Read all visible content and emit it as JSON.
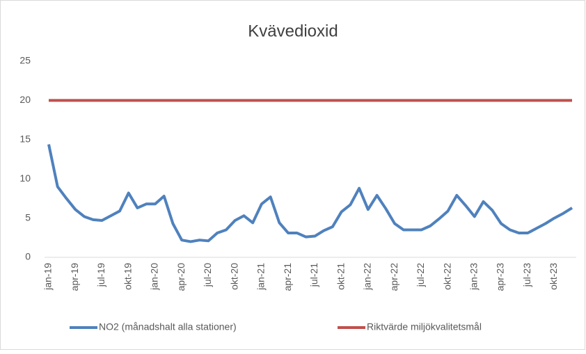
{
  "chart_data": {
    "type": "line",
    "title": "Kvävedioxid",
    "categories": [
      "jan-19",
      null,
      null,
      "apr-19",
      null,
      null,
      "jul-19",
      null,
      null,
      "okt-19",
      null,
      null,
      "jan-20",
      null,
      null,
      "apr-20",
      null,
      null,
      "jul-20",
      null,
      null,
      "okt-20",
      null,
      null,
      "jan-21",
      null,
      null,
      "apr-21",
      null,
      null,
      "jul-21",
      null,
      null,
      "okt-21",
      null,
      null,
      "jan-22",
      null,
      null,
      "apr-22",
      null,
      null,
      "jul-22",
      null,
      null,
      "okt-22",
      null,
      null,
      "jan-23",
      null,
      null,
      "apr-23",
      null,
      null,
      "jul-23",
      null,
      null,
      "okt-23",
      null,
      null
    ],
    "series": [
      {
        "name": "NO2 (månadshalt alla stationer)",
        "color": "#4f81bd",
        "values": [
          14.4,
          9.0,
          7.5,
          6.1,
          5.2,
          4.8,
          4.7,
          5.3,
          5.9,
          8.2,
          6.3,
          6.8,
          6.8,
          7.8,
          4.3,
          2.2,
          2.0,
          2.2,
          2.1,
          3.1,
          3.5,
          4.7,
          5.3,
          4.4,
          6.8,
          7.7,
          4.4,
          3.1,
          3.1,
          2.6,
          2.7,
          3.4,
          3.9,
          5.8,
          6.7,
          8.8,
          6.1,
          7.9,
          6.2,
          4.3,
          3.5,
          3.5,
          3.5,
          4.0,
          4.9,
          5.9,
          7.9,
          6.6,
          5.2,
          7.1,
          6.0,
          4.3,
          3.5,
          3.1,
          3.1,
          3.7,
          4.3,
          5.0,
          5.6,
          6.3
        ]
      },
      {
        "name": "Riktvärde miljökvalitetsmål",
        "color": "#c0504d",
        "values": [
          20,
          20,
          20,
          20,
          20,
          20,
          20,
          20,
          20,
          20,
          20,
          20,
          20,
          20,
          20,
          20,
          20,
          20,
          20,
          20,
          20,
          20,
          20,
          20,
          20,
          20,
          20,
          20,
          20,
          20,
          20,
          20,
          20,
          20,
          20,
          20,
          20,
          20,
          20,
          20,
          20,
          20,
          20,
          20,
          20,
          20,
          20,
          20,
          20,
          20,
          20,
          20,
          20,
          20,
          20,
          20,
          20,
          20,
          20,
          20
        ]
      }
    ],
    "ylim": [
      0,
      25
    ],
    "yticks": [
      0,
      5,
      10,
      15,
      20,
      25
    ],
    "grid": false,
    "legend": "bottom"
  }
}
